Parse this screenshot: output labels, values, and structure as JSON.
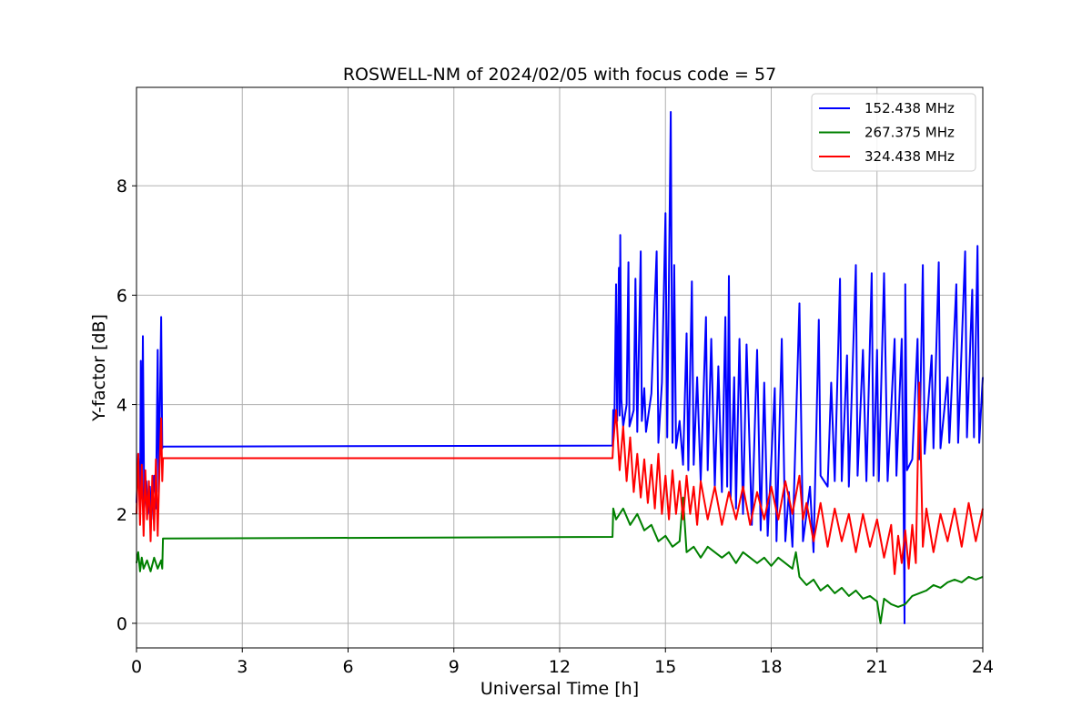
{
  "chart_data": {
    "type": "line",
    "title": "ROSWELL-NM of 2024/02/05 with focus code = 57",
    "xlabel": "Universal Time [h]",
    "ylabel": "Y-factor [dB]",
    "xlim": [
      0,
      24
    ],
    "ylim": [
      -0.45,
      9.8
    ],
    "x_ticks": [
      0,
      3,
      6,
      9,
      12,
      15,
      18,
      21,
      24
    ],
    "y_ticks": [
      0,
      2,
      4,
      6,
      8
    ],
    "grid": true,
    "legend_position": "top-right",
    "series": [
      {
        "name": "152.438 MHz",
        "color": "#0000ff",
        "points": [
          [
            0.0,
            2.2
          ],
          [
            0.05,
            3.1
          ],
          [
            0.1,
            2.0
          ],
          [
            0.12,
            4.8
          ],
          [
            0.15,
            2.3
          ],
          [
            0.18,
            5.25
          ],
          [
            0.22,
            2.1
          ],
          [
            0.28,
            2.6
          ],
          [
            0.32,
            2.0
          ],
          [
            0.38,
            2.5
          ],
          [
            0.42,
            1.9
          ],
          [
            0.5,
            2.7
          ],
          [
            0.55,
            2.1
          ],
          [
            0.6,
            5.0
          ],
          [
            0.63,
            2.4
          ],
          [
            0.7,
            5.6
          ],
          [
            0.73,
            3.2
          ],
          [
            0.75,
            3.23
          ],
          [
            13.5,
            3.25
          ],
          [
            13.52,
            3.9
          ],
          [
            13.55,
            3.6
          ],
          [
            13.6,
            6.2
          ],
          [
            13.63,
            3.7
          ],
          [
            13.68,
            6.5
          ],
          [
            13.7,
            3.8
          ],
          [
            13.72,
            7.1
          ],
          [
            13.75,
            4.1
          ],
          [
            13.8,
            3.6
          ],
          [
            13.9,
            4.0
          ],
          [
            13.95,
            6.6
          ],
          [
            13.98,
            3.6
          ],
          [
            14.1,
            3.9
          ],
          [
            14.15,
            6.3
          ],
          [
            14.2,
            3.5
          ],
          [
            14.3,
            6.8
          ],
          [
            14.33,
            3.7
          ],
          [
            14.4,
            4.3
          ],
          [
            14.45,
            3.5
          ],
          [
            14.6,
            4.2
          ],
          [
            14.75,
            6.8
          ],
          [
            14.8,
            3.3
          ],
          [
            14.9,
            4.4
          ],
          [
            15.0,
            7.5
          ],
          [
            15.05,
            3.4
          ],
          [
            15.15,
            9.35
          ],
          [
            15.2,
            3.3
          ],
          [
            15.25,
            6.55
          ],
          [
            15.3,
            3.2
          ],
          [
            15.4,
            3.7
          ],
          [
            15.5,
            2.9
          ],
          [
            15.6,
            5.3
          ],
          [
            15.65,
            2.8
          ],
          [
            15.75,
            6.25
          ],
          [
            15.8,
            2.9
          ],
          [
            15.9,
            4.5
          ],
          [
            16.0,
            2.6
          ],
          [
            16.15,
            5.6
          ],
          [
            16.2,
            2.8
          ],
          [
            16.3,
            5.2
          ],
          [
            16.4,
            2.5
          ],
          [
            16.5,
            4.7
          ],
          [
            16.6,
            2.4
          ],
          [
            16.7,
            5.6
          ],
          [
            16.75,
            2.5
          ],
          [
            16.8,
            6.35
          ],
          [
            16.85,
            2.3
          ],
          [
            16.95,
            4.5
          ],
          [
            17.0,
            2.1
          ],
          [
            17.1,
            5.2
          ],
          [
            17.2,
            2.0
          ],
          [
            17.3,
            5.1
          ],
          [
            17.45,
            1.8
          ],
          [
            17.6,
            5.0
          ],
          [
            17.7,
            1.7
          ],
          [
            17.8,
            4.4
          ],
          [
            17.9,
            1.6
          ],
          [
            18.1,
            4.3
          ],
          [
            18.15,
            1.5
          ],
          [
            18.3,
            5.2
          ],
          [
            18.4,
            1.5
          ],
          [
            18.5,
            2.4
          ],
          [
            18.6,
            1.4
          ],
          [
            18.8,
            5.85
          ],
          [
            18.9,
            1.5
          ],
          [
            19.1,
            2.5
          ],
          [
            19.2,
            1.3
          ],
          [
            19.35,
            5.55
          ],
          [
            19.4,
            2.7
          ],
          [
            19.6,
            2.5
          ],
          [
            19.7,
            4.4
          ],
          [
            19.8,
            2.6
          ],
          [
            19.95,
            6.3
          ],
          [
            20.0,
            2.6
          ],
          [
            20.15,
            4.9
          ],
          [
            20.2,
            2.5
          ],
          [
            20.4,
            6.55
          ],
          [
            20.45,
            2.7
          ],
          [
            20.6,
            5.0
          ],
          [
            20.7,
            2.6
          ],
          [
            20.85,
            6.4
          ],
          [
            20.9,
            2.7
          ],
          [
            21.0,
            5.0
          ],
          [
            21.05,
            2.6
          ],
          [
            21.2,
            6.4
          ],
          [
            21.3,
            2.6
          ],
          [
            21.5,
            5.2
          ],
          [
            21.55,
            2.7
          ],
          [
            21.7,
            5.2
          ],
          [
            21.75,
            2.5
          ],
          [
            21.78,
            0.0
          ],
          [
            21.8,
            6.2
          ],
          [
            21.85,
            2.8
          ],
          [
            22.0,
            3.0
          ],
          [
            22.15,
            5.2
          ],
          [
            22.2,
            3.0
          ],
          [
            22.3,
            6.55
          ],
          [
            22.35,
            3.1
          ],
          [
            22.55,
            4.9
          ],
          [
            22.6,
            3.2
          ],
          [
            22.75,
            6.6
          ],
          [
            22.8,
            3.2
          ],
          [
            23.0,
            4.5
          ],
          [
            23.05,
            3.3
          ],
          [
            23.25,
            6.2
          ],
          [
            23.3,
            3.3
          ],
          [
            23.5,
            6.8
          ],
          [
            23.55,
            3.4
          ],
          [
            23.7,
            6.1
          ],
          [
            23.75,
            3.4
          ],
          [
            23.85,
            6.9
          ],
          [
            23.9,
            3.3
          ],
          [
            24.0,
            4.5
          ]
        ]
      },
      {
        "name": "267.375 MHz",
        "color": "#008000",
        "points": [
          [
            0.0,
            1.1
          ],
          [
            0.05,
            1.3
          ],
          [
            0.1,
            0.95
          ],
          [
            0.15,
            1.2
          ],
          [
            0.2,
            1.0
          ],
          [
            0.3,
            1.15
          ],
          [
            0.4,
            0.95
          ],
          [
            0.5,
            1.2
          ],
          [
            0.6,
            1.0
          ],
          [
            0.7,
            1.15
          ],
          [
            0.73,
            1.0
          ],
          [
            0.75,
            1.55
          ],
          [
            13.5,
            1.58
          ],
          [
            13.52,
            2.1
          ],
          [
            13.6,
            1.9
          ],
          [
            13.8,
            2.1
          ],
          [
            14.0,
            1.8
          ],
          [
            14.2,
            2.0
          ],
          [
            14.4,
            1.7
          ],
          [
            14.6,
            1.8
          ],
          [
            14.8,
            1.5
          ],
          [
            15.0,
            1.6
          ],
          [
            15.2,
            1.4
          ],
          [
            15.4,
            1.5
          ],
          [
            15.5,
            2.3
          ],
          [
            15.6,
            1.3
          ],
          [
            15.8,
            1.4
          ],
          [
            16.0,
            1.2
          ],
          [
            16.2,
            1.4
          ],
          [
            16.4,
            1.3
          ],
          [
            16.6,
            1.2
          ],
          [
            16.8,
            1.3
          ],
          [
            17.0,
            1.1
          ],
          [
            17.2,
            1.3
          ],
          [
            17.4,
            1.2
          ],
          [
            17.6,
            1.1
          ],
          [
            17.8,
            1.2
          ],
          [
            18.0,
            1.05
          ],
          [
            18.2,
            1.2
          ],
          [
            18.4,
            1.1
          ],
          [
            18.6,
            1.0
          ],
          [
            18.7,
            1.3
          ],
          [
            18.8,
            0.85
          ],
          [
            19.0,
            0.7
          ],
          [
            19.2,
            0.8
          ],
          [
            19.4,
            0.6
          ],
          [
            19.6,
            0.7
          ],
          [
            19.8,
            0.55
          ],
          [
            20.0,
            0.65
          ],
          [
            20.2,
            0.5
          ],
          [
            20.4,
            0.6
          ],
          [
            20.6,
            0.45
          ],
          [
            20.8,
            0.5
          ],
          [
            21.0,
            0.4
          ],
          [
            21.1,
            0.0
          ],
          [
            21.2,
            0.45
          ],
          [
            21.4,
            0.35
          ],
          [
            21.6,
            0.3
          ],
          [
            21.8,
            0.35
          ],
          [
            22.0,
            0.5
          ],
          [
            22.2,
            0.55
          ],
          [
            22.4,
            0.6
          ],
          [
            22.6,
            0.7
          ],
          [
            22.8,
            0.65
          ],
          [
            23.0,
            0.75
          ],
          [
            23.2,
            0.8
          ],
          [
            23.4,
            0.75
          ],
          [
            23.6,
            0.85
          ],
          [
            23.8,
            0.8
          ],
          [
            24.0,
            0.85
          ]
        ]
      },
      {
        "name": "324.438 MHz",
        "color": "#ff0000",
        "points": [
          [
            0.0,
            2.0
          ],
          [
            0.05,
            3.1
          ],
          [
            0.1,
            1.8
          ],
          [
            0.15,
            2.9
          ],
          [
            0.2,
            1.6
          ],
          [
            0.25,
            2.8
          ],
          [
            0.3,
            1.9
          ],
          [
            0.35,
            2.6
          ],
          [
            0.4,
            1.5
          ],
          [
            0.45,
            2.7
          ],
          [
            0.5,
            1.7
          ],
          [
            0.55,
            3.0
          ],
          [
            0.6,
            1.6
          ],
          [
            0.65,
            2.8
          ],
          [
            0.7,
            3.75
          ],
          [
            0.73,
            2.6
          ],
          [
            0.75,
            3.02
          ],
          [
            13.5,
            3.02
          ],
          [
            13.52,
            3.3
          ],
          [
            13.6,
            3.9
          ],
          [
            13.7,
            2.8
          ],
          [
            13.8,
            3.6
          ],
          [
            13.9,
            2.6
          ],
          [
            14.0,
            3.4
          ],
          [
            14.1,
            2.4
          ],
          [
            14.2,
            3.1
          ],
          [
            14.3,
            2.3
          ],
          [
            14.4,
            3.0
          ],
          [
            14.5,
            2.2
          ],
          [
            14.6,
            2.9
          ],
          [
            14.7,
            2.1
          ],
          [
            14.8,
            3.1
          ],
          [
            14.9,
            2.0
          ],
          [
            15.0,
            2.7
          ],
          [
            15.1,
            1.9
          ],
          [
            15.2,
            2.8
          ],
          [
            15.3,
            2.0
          ],
          [
            15.4,
            2.6
          ],
          [
            15.5,
            1.9
          ],
          [
            15.6,
            2.7
          ],
          [
            15.7,
            2.0
          ],
          [
            15.8,
            2.5
          ],
          [
            15.9,
            1.8
          ],
          [
            16.0,
            2.6
          ],
          [
            16.2,
            1.9
          ],
          [
            16.4,
            2.5
          ],
          [
            16.6,
            1.8
          ],
          [
            16.8,
            2.4
          ],
          [
            17.0,
            1.9
          ],
          [
            17.2,
            2.5
          ],
          [
            17.4,
            1.8
          ],
          [
            17.6,
            2.4
          ],
          [
            17.8,
            1.9
          ],
          [
            18.0,
            2.5
          ],
          [
            18.2,
            1.9
          ],
          [
            18.4,
            2.6
          ],
          [
            18.6,
            2.0
          ],
          [
            18.8,
            2.7
          ],
          [
            18.9,
            1.9
          ],
          [
            19.0,
            2.2
          ],
          [
            19.2,
            1.5
          ],
          [
            19.4,
            2.2
          ],
          [
            19.6,
            1.4
          ],
          [
            19.8,
            2.1
          ],
          [
            20.0,
            1.5
          ],
          [
            20.2,
            2.0
          ],
          [
            20.4,
            1.3
          ],
          [
            20.6,
            2.0
          ],
          [
            20.8,
            1.4
          ],
          [
            21.0,
            1.9
          ],
          [
            21.2,
            1.2
          ],
          [
            21.4,
            1.8
          ],
          [
            21.5,
            0.9
          ],
          [
            21.6,
            1.6
          ],
          [
            21.7,
            1.1
          ],
          [
            21.8,
            1.7
          ],
          [
            21.9,
            1.0
          ],
          [
            22.0,
            1.8
          ],
          [
            22.1,
            1.1
          ],
          [
            22.2,
            4.4
          ],
          [
            22.3,
            1.4
          ],
          [
            22.4,
            2.1
          ],
          [
            22.6,
            1.3
          ],
          [
            22.8,
            2.0
          ],
          [
            23.0,
            1.5
          ],
          [
            23.2,
            2.1
          ],
          [
            23.4,
            1.4
          ],
          [
            23.6,
            2.2
          ],
          [
            23.8,
            1.5
          ],
          [
            24.0,
            2.1
          ]
        ]
      }
    ]
  }
}
